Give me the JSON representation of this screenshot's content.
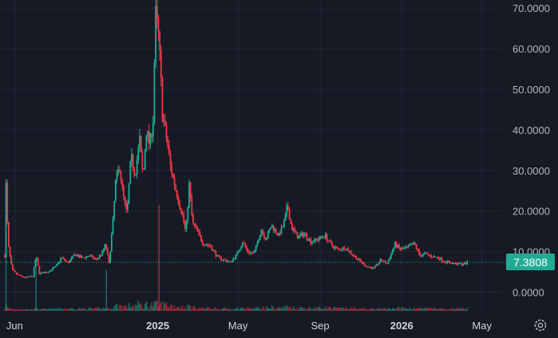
{
  "colors": {
    "up": "#22ab94",
    "down": "#f23645",
    "background": "#161a25",
    "grid": "#232735",
    "axis_text": "#b2b5be",
    "last_price_line": "#22ab94"
  },
  "icons": {
    "settings": "gear-icon"
  },
  "chart_data": {
    "type": "candlestick",
    "grid": true,
    "ylim": [
      -5,
      72
    ],
    "y_ticks": [
      {
        "value": 0,
        "label": "0.0000"
      },
      {
        "value": 10,
        "label": "10.0000"
      },
      {
        "value": 20,
        "label": "20.0000"
      },
      {
        "value": 30,
        "label": "30.0000"
      },
      {
        "value": 40,
        "label": "40.0000"
      },
      {
        "value": 50,
        "label": "50.0000"
      },
      {
        "value": 60,
        "label": "60.0000"
      },
      {
        "value": 70,
        "label": "70.0000"
      }
    ],
    "x_range": [
      "2024-05-10",
      "2026-05-30"
    ],
    "x_ticks": [
      {
        "date": "2024-06-01",
        "label": "Jun",
        "bold": false
      },
      {
        "date": "2025-01-01",
        "label": "2025",
        "bold": true
      },
      {
        "date": "2025-05-01",
        "label": "May",
        "bold": false
      },
      {
        "date": "2025-09-01",
        "label": "Sep",
        "bold": false
      },
      {
        "date": "2026-01-01",
        "label": "2026",
        "bold": true
      },
      {
        "date": "2026-05-01",
        "label": "May",
        "bold": false
      }
    ],
    "last_price": 7.3808,
    "last_price_label": "7.3808",
    "price_path": [
      [
        "2024-05-17",
        9.0
      ],
      [
        "2024-05-19",
        26.5
      ],
      [
        "2024-05-22",
        12.0
      ],
      [
        "2024-05-28",
        5.5
      ],
      [
        "2024-06-05",
        4.3
      ],
      [
        "2024-06-15",
        3.6
      ],
      [
        "2024-06-28",
        3.9
      ],
      [
        "2024-07-03",
        9.0
      ],
      [
        "2024-07-08",
        4.6
      ],
      [
        "2024-07-20",
        5.0
      ],
      [
        "2024-08-01",
        6.2
      ],
      [
        "2024-08-10",
        8.5
      ],
      [
        "2024-08-20",
        7.2
      ],
      [
        "2024-08-30",
        9.3
      ],
      [
        "2024-09-10",
        8.4
      ],
      [
        "2024-09-20",
        9.0
      ],
      [
        "2024-10-01",
        8.0
      ],
      [
        "2024-10-10",
        9.7
      ],
      [
        "2024-10-15",
        11.8
      ],
      [
        "2024-10-20",
        7.0
      ],
      [
        "2024-10-26",
        17.5
      ],
      [
        "2024-10-30",
        27.0
      ],
      [
        "2024-11-05",
        31.0
      ],
      [
        "2024-11-10",
        24.0
      ],
      [
        "2024-11-16",
        19.0
      ],
      [
        "2024-11-22",
        33.5
      ],
      [
        "2024-11-28",
        29.0
      ],
      [
        "2024-12-05",
        37.5
      ],
      [
        "2024-12-10",
        28.0
      ],
      [
        "2024-12-15",
        40.0
      ],
      [
        "2024-12-20",
        36.0
      ],
      [
        "2024-12-26",
        44.0
      ],
      [
        "2024-12-28",
        69.5
      ],
      [
        "2025-01-02",
        63.0
      ],
      [
        "2025-01-05",
        55.0
      ],
      [
        "2025-01-08",
        44.0
      ],
      [
        "2025-01-12",
        40.0
      ],
      [
        "2025-01-16",
        36.0
      ],
      [
        "2025-01-20",
        31.0
      ],
      [
        "2025-01-27",
        26.0
      ],
      [
        "2025-02-02",
        22.0
      ],
      [
        "2025-02-07",
        19.0
      ],
      [
        "2025-02-12",
        14.5
      ],
      [
        "2025-02-17",
        26.5
      ],
      [
        "2025-02-22",
        17.0
      ],
      [
        "2025-03-01",
        15.0
      ],
      [
        "2025-03-10",
        12.0
      ],
      [
        "2025-03-20",
        11.5
      ],
      [
        "2025-04-01",
        8.5
      ],
      [
        "2025-04-10",
        8.0
      ],
      [
        "2025-04-20",
        7.4
      ],
      [
        "2025-04-30",
        9.5
      ],
      [
        "2025-05-08",
        12.5
      ],
      [
        "2025-05-15",
        10.0
      ],
      [
        "2025-05-25",
        9.5
      ],
      [
        "2025-06-05",
        15.5
      ],
      [
        "2025-06-12",
        13.0
      ],
      [
        "2025-06-20",
        16.5
      ],
      [
        "2025-07-01",
        14.0
      ],
      [
        "2025-07-10",
        17.5
      ],
      [
        "2025-07-14",
        21.5
      ],
      [
        "2025-07-20",
        16.0
      ],
      [
        "2025-07-30",
        13.5
      ],
      [
        "2025-08-08",
        14.5
      ],
      [
        "2025-08-18",
        12.5
      ],
      [
        "2025-08-28",
        13.0
      ],
      [
        "2025-09-08",
        14.0
      ],
      [
        "2025-09-18",
        11.5
      ],
      [
        "2025-09-28",
        10.5
      ],
      [
        "2025-10-08",
        11.0
      ],
      [
        "2025-10-18",
        9.5
      ],
      [
        "2025-10-28",
        8.0
      ],
      [
        "2025-11-08",
        6.5
      ],
      [
        "2025-11-20",
        5.8
      ],
      [
        "2025-12-01",
        8.0
      ],
      [
        "2025-12-10",
        7.0
      ],
      [
        "2025-12-22",
        11.8
      ],
      [
        "2025-12-30",
        10.5
      ],
      [
        "2026-01-10",
        11.0
      ],
      [
        "2026-01-20",
        12.0
      ],
      [
        "2026-01-28",
        9.0
      ],
      [
        "2026-02-05",
        9.5
      ],
      [
        "2026-02-15",
        8.8
      ],
      [
        "2026-02-25",
        8.5
      ],
      [
        "2026-03-05",
        7.6
      ],
      [
        "2026-03-15",
        7.2
      ],
      [
        "2026-03-25",
        6.9
      ],
      [
        "2026-04-05",
        7.0
      ],
      [
        "2026-04-10",
        7.38
      ]
    ],
    "volume_spikes": [
      [
        "2024-05-19",
        26.5
      ],
      [
        "2024-07-03",
        8.5
      ],
      [
        "2024-10-16",
        5.5
      ],
      [
        "2025-01-03",
        21.5
      ]
    ]
  }
}
